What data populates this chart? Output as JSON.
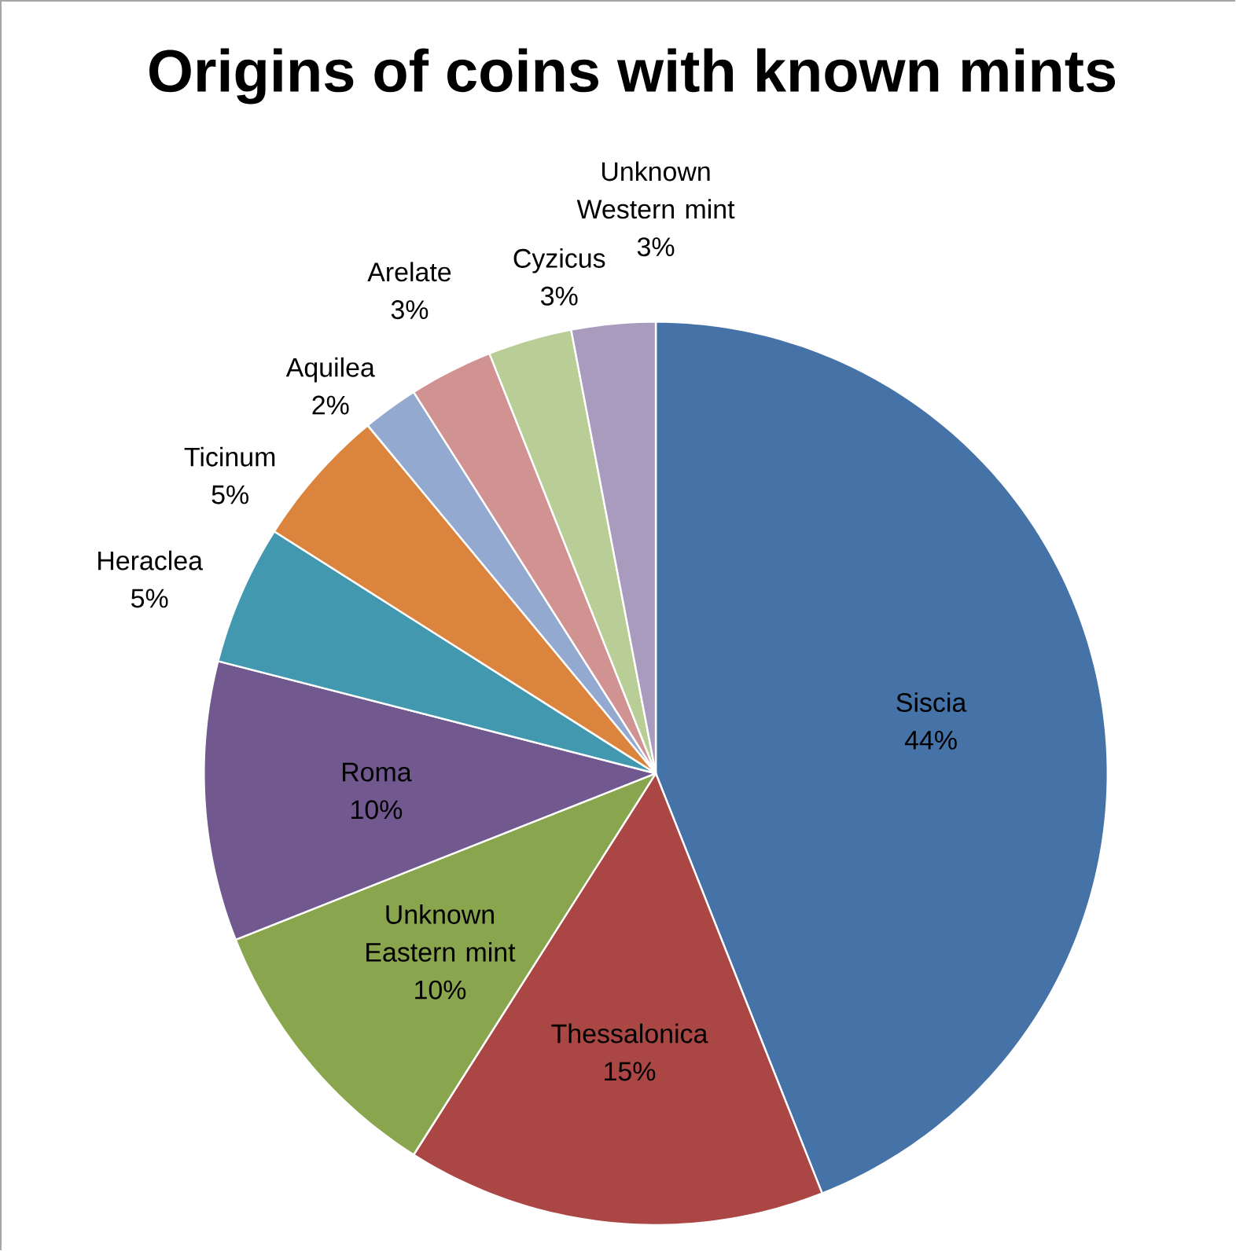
{
  "chart_data": {
    "type": "pie",
    "title": "Origins of coins with known mints",
    "categories": [
      "Siscia",
      "Thessalonica",
      "Unknown Eastern mint",
      "Roma",
      "Heraclea",
      "Ticinum",
      "Aquilea",
      "Arelate",
      "Cyzicus",
      "Unknown Western mint"
    ],
    "values": [
      44,
      15,
      10,
      10,
      5,
      5,
      2,
      3,
      3,
      3
    ],
    "value_labels": [
      "44%",
      "15%",
      "10%",
      "10%",
      "5%",
      "5%",
      "2%",
      "3%",
      "3%",
      "3%"
    ],
    "colors": [
      "#4572a7",
      "#aa4643",
      "#89a54e",
      "#71588f",
      "#4198af",
      "#db843d",
      "#93a9cf",
      "#d19392",
      "#b9cd96",
      "#a99bbd"
    ]
  }
}
